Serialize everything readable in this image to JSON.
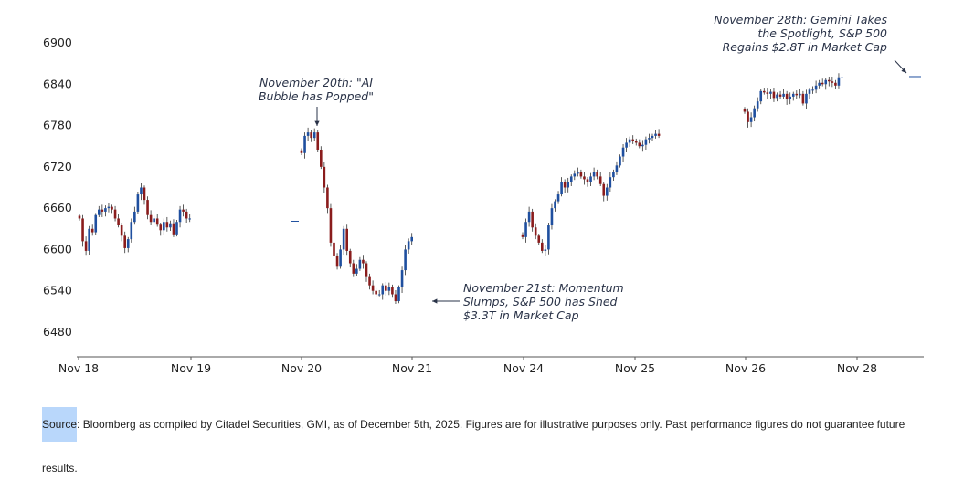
{
  "chart_data": {
    "type": "candlestick",
    "title": "",
    "xlabel": "",
    "ylabel": "",
    "ylim": [
      6445,
      6925
    ],
    "y_ticks": [
      "6480",
      "6540",
      "6600",
      "6660",
      "6720",
      "6780",
      "6840",
      "6900"
    ],
    "x_ticks": [
      "Nov 18",
      "Nov 19",
      "Nov 20",
      "Nov 21",
      "Nov 24",
      "Nov 25",
      "Nov 26",
      "Nov 28"
    ],
    "colors": {
      "up": "#1f4f9f",
      "down": "#8a1c1c",
      "axis": "#555555",
      "annotation": "#2a3348"
    },
    "days": [
      {
        "label": "Nov 18",
        "session": [
          6645,
          6612,
          6598,
          6630,
          6625,
          6650,
          6658,
          6655,
          6660,
          6662,
          6658,
          6645,
          6635,
          6620,
          6602,
          6615,
          6640,
          6655,
          6680,
          6690,
          6672,
          6650,
          6640,
          6645,
          6636,
          6628,
          6640,
          6632,
          6638,
          6622,
          6640,
          6658,
          6655,
          6645,
          6645
        ]
      },
      {
        "label": "Nov 20",
        "session": [
          6740,
          6765,
          6770,
          6762,
          6770,
          6745,
          6720,
          6690,
          6660,
          6610,
          6590,
          6575,
          6600,
          6630,
          6598,
          6580,
          6565,
          6572,
          6585,
          6580,
          6560,
          6548,
          6540,
          6535,
          6535,
          6548,
          6540,
          6545,
          6535,
          6525,
          6545,
          6570,
          6600,
          6612,
          6618
        ]
      },
      {
        "label": "Nov 24",
        "session": [
          6618,
          6640,
          6655,
          6632,
          6620,
          6610,
          6598,
          6600,
          6635,
          6660,
          6670,
          6680,
          6698,
          6690,
          6698,
          6706,
          6710,
          6712,
          6706,
          6702,
          6698,
          6706,
          6712,
          6706,
          6695,
          6678,
          6690,
          6705,
          6712,
          6722,
          6735,
          6748,
          6755,
          6760,
          6758,
          6755,
          6750,
          6752,
          6760,
          6762,
          6765,
          6768,
          6765
        ]
      },
      {
        "label": "Nov 26",
        "session": [
          6800,
          6785,
          6792,
          6805,
          6815,
          6830,
          6828,
          6826,
          6829,
          6820,
          6825,
          6822,
          6826,
          6818,
          6822,
          6826,
          6824,
          6826,
          6812,
          6826,
          6832,
          6832,
          6838,
          6842,
          6840,
          6846,
          6844,
          6842,
          6838,
          6850,
          6850
        ]
      }
    ],
    "annotations": [
      {
        "lines": [
          "November 20th: \"AI",
          "Bubble has Popped\""
        ],
        "points_to_value": 6772
      },
      {
        "lines": [
          "November 21st: Momentum",
          "Slumps, S&P 500 has Shed",
          "$3.3T in Market Cap"
        ],
        "points_to_value": 6525
      },
      {
        "lines": [
          "November 28th: Gemini Takes",
          "the Spotlight, S&P 500",
          "Regains $2.8T in Market Cap"
        ],
        "points_to_value": 6850
      }
    ]
  },
  "source": {
    "label": "Source",
    "text": ": Bloomberg as compiled by Citadel Securities, GMI, as of December 5th, 2025. Figures are for illustrative purposes only. Past performance figures do not guarantee future results."
  }
}
